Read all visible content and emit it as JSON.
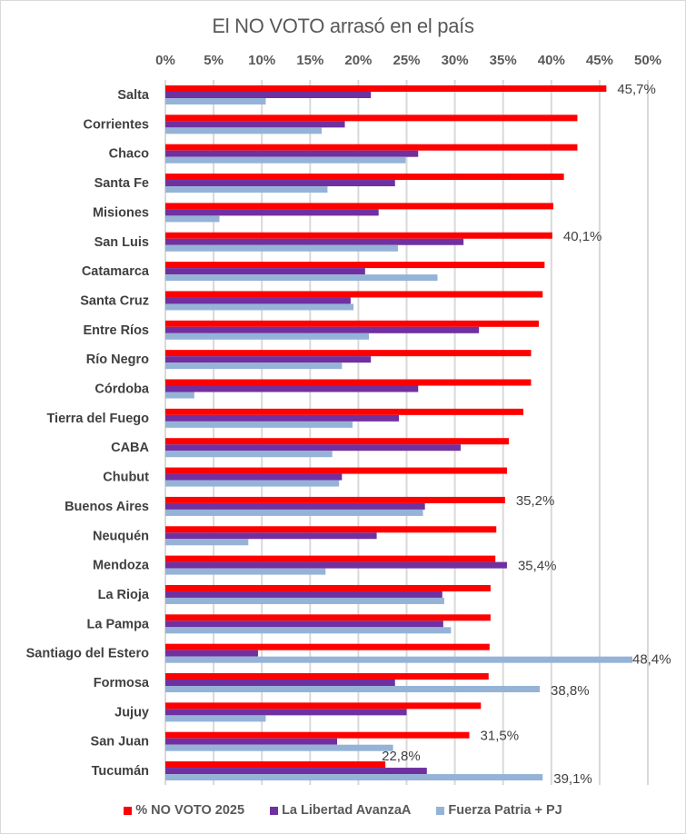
{
  "chart_data": {
    "type": "bar",
    "orientation": "horizontal",
    "title": "El NO VOTO arrasó en el país",
    "xlabel": "",
    "ylabel": "",
    "xlim": [
      0,
      50
    ],
    "x_ticks": [
      "0%",
      "5%",
      "10%",
      "15%",
      "20%",
      "25%",
      "30%",
      "35%",
      "40%",
      "45%",
      "50%"
    ],
    "x_tick_values": [
      0,
      5,
      10,
      15,
      20,
      25,
      30,
      35,
      40,
      45,
      50
    ],
    "x_axis_position": "top",
    "grid": true,
    "legend_position": "bottom",
    "categories": [
      "Salta",
      "Corrientes",
      "Chaco",
      "Santa Fe",
      "Misiones",
      "San Luis",
      "Catamarca",
      "Santa Cruz",
      "Entre Ríos",
      "Río Negro",
      "Córdoba",
      "Tierra del Fuego",
      "CABA",
      "Chubut",
      "Buenos Aires",
      "Neuquén",
      "Mendoza",
      "La Rioja",
      "La Pampa",
      "Santiago del Estero",
      "Formosa",
      "Jujuy",
      "San Juan",
      "Tucumán"
    ],
    "series": [
      {
        "name": "% NO VOTO 2025",
        "color": "#ff0000",
        "values": [
          45.7,
          42.7,
          42.7,
          41.3,
          40.2,
          40.1,
          39.3,
          39.1,
          38.7,
          37.9,
          37.9,
          37.1,
          35.6,
          35.4,
          35.2,
          34.3,
          34.2,
          33.7,
          33.7,
          33.6,
          33.5,
          32.7,
          31.5,
          22.8
        ]
      },
      {
        "name": "La Libertad AvanzaA",
        "color": "#7030a0",
        "values": [
          21.3,
          18.6,
          26.2,
          23.8,
          22.1,
          30.9,
          20.7,
          19.2,
          32.5,
          21.3,
          26.2,
          24.2,
          30.6,
          18.3,
          26.9,
          21.9,
          35.4,
          28.7,
          28.8,
          9.6,
          23.8,
          25.0,
          17.8,
          27.1
        ]
      },
      {
        "name": "Fuerza Patria + PJ",
        "color": "#95b3d7",
        "values": [
          10.4,
          16.2,
          24.9,
          16.8,
          5.6,
          24.1,
          28.2,
          19.5,
          21.1,
          18.3,
          3.0,
          19.4,
          17.3,
          18.0,
          26.7,
          8.6,
          16.6,
          28.9,
          29.6,
          48.4,
          38.8,
          10.4,
          23.6,
          39.1
        ]
      }
    ],
    "annotations": [
      {
        "category": "Salta",
        "series": 0,
        "text": "45,7%"
      },
      {
        "category": "San Luis",
        "series": 0,
        "text": "40,1%"
      },
      {
        "category": "Buenos Aires",
        "series": 0,
        "text": "35,2%"
      },
      {
        "category": "Mendoza",
        "series": 1,
        "text": "35,4%"
      },
      {
        "category": "Santiago del Estero",
        "series": 2,
        "text": "48,4%"
      },
      {
        "category": "Formosa",
        "series": 2,
        "text": "38,8%"
      },
      {
        "category": "San Juan",
        "series": 0,
        "text": "31,5%"
      },
      {
        "category": "Tucumán",
        "series": 0,
        "text": "22,8%"
      },
      {
        "category": "Tucumán",
        "series": 2,
        "text": "39,1%"
      }
    ]
  }
}
